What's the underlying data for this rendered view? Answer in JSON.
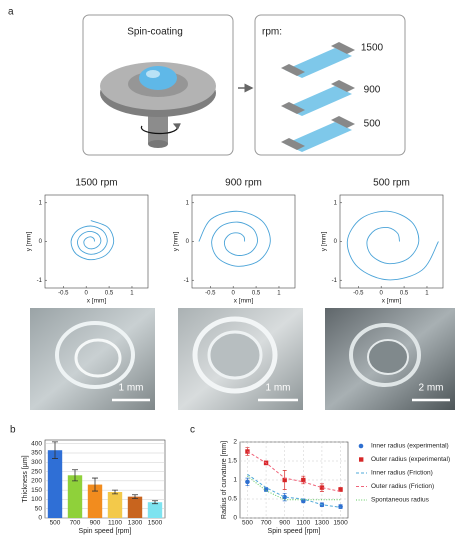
{
  "panel_labels": [
    "a",
    "b",
    "c"
  ],
  "schematic": {
    "spin_title": "Spin-coating",
    "rpm_title": "rpm:",
    "rpm_labels": [
      "1500",
      "900",
      "500"
    ]
  },
  "photos": {
    "scale_bars": [
      "1 mm",
      "1 mm",
      "2 mm"
    ]
  },
  "chart_data": [
    {
      "type": "line",
      "title": "1500 rpm",
      "xlabel": "x [mm]",
      "ylabel": "y [mm]",
      "smooth": true,
      "xlim": [
        -0.9,
        1.35
      ],
      "ylim": [
        -1.2,
        1.2
      ],
      "xticks": [
        -0.5,
        0,
        0.5,
        1
      ],
      "yticks": [
        -1,
        0,
        1
      ],
      "x": [
        0.18,
        0.17,
        0.1,
        0.01,
        -0.05,
        -0.02,
        0.1,
        0.24,
        0.32,
        0.27,
        0.1,
        -0.09,
        -0.19,
        -0.12,
        0.1,
        0.34,
        0.46,
        0.37,
        0.1,
        -0.19,
        -0.33,
        -0.22,
        0.1,
        0.44,
        0.6,
        0.47,
        0.1
      ],
      "series": [
        {
          "color": "#4aa3d8",
          "line": "solid",
          "values": [
            0,
            0.07,
            0.12,
            0.09,
            0,
            -0.12,
            -0.19,
            -0.14,
            0,
            0.17,
            0.26,
            0.19,
            0,
            -0.22,
            -0.33,
            -0.24,
            0,
            0.27,
            0.4,
            0.29,
            0,
            -0.32,
            -0.47,
            -0.34,
            0,
            0.37,
            0.54
          ]
        }
      ]
    },
    {
      "type": "line",
      "title": "900 rpm",
      "xlabel": "x [mm]",
      "ylabel": "y [mm]",
      "smooth": true,
      "xlim": [
        -0.9,
        1.35
      ],
      "ylim": [
        -1.2,
        1.2
      ],
      "xticks": [
        -0.5,
        0,
        0.5,
        1
      ],
      "yticks": [
        -1,
        0,
        1
      ],
      "x": [
        0.25,
        0.23,
        0.1,
        -0.08,
        -0.19,
        -0.13,
        0.1,
        0.38,
        0.53,
        0.43,
        0.1,
        -0.28,
        -0.47,
        -0.33,
        0.1,
        0.58,
        0.81,
        0.63,
        0.1,
        -0.48,
        -0.75
      ],
      "series": [
        {
          "color": "#4aa3d8",
          "line": "solid",
          "values": [
            0,
            0.13,
            0.22,
            0.18,
            0,
            -0.23,
            -0.36,
            -0.28,
            0,
            0.33,
            0.5,
            0.38,
            0,
            -0.43,
            -0.64,
            -0.48,
            0,
            0.53,
            0.78,
            0.58,
            0
          ]
        }
      ]
    },
    {
      "type": "line",
      "title": "500 rpm",
      "xlabel": "x [mm]",
      "ylabel": "y [mm]",
      "smooth": true,
      "xlim": [
        -0.9,
        1.35
      ],
      "ylim": [
        -1.2,
        1.2
      ],
      "xticks": [
        -0.5,
        0,
        0.5,
        1
      ],
      "yticks": [
        -1,
        0,
        1
      ],
      "x": [
        0.4,
        0.36,
        0.15,
        -0.14,
        -0.31,
        -0.21,
        0.15,
        0.59,
        0.82,
        0.66,
        0.15,
        -0.44,
        -0.74,
        -0.51,
        0.15,
        0.89,
        1.25
      ],
      "series": [
        {
          "color": "#4aa3d8",
          "line": "solid",
          "values": [
            0,
            0.21,
            0.36,
            0.29,
            0,
            -0.36,
            -0.57,
            -0.44,
            0,
            0.51,
            0.78,
            0.59,
            0,
            -0.66,
            -0.99,
            -0.74,
            0
          ]
        }
      ]
    },
    {
      "type": "bar",
      "xlabel": "Spin speed [rpm]",
      "ylabel": "Thickness [µm]",
      "grid": true,
      "categories": [
        "500",
        "700",
        "900",
        "1100",
        "1300",
        "1500"
      ],
      "values": [
        365,
        230,
        180,
        140,
        115,
        85
      ],
      "errors": [
        45,
        30,
        35,
        10,
        10,
        8
      ],
      "colors": [
        "#2f6fd6",
        "#8fd13a",
        "#f28c1e",
        "#f3c94a",
        "#c8641e",
        "#7de3f0"
      ],
      "ylim": [
        0,
        420
      ],
      "yticks": [
        0,
        50,
        100,
        150,
        200,
        250,
        300,
        350,
        400
      ]
    },
    {
      "type": "line",
      "xlabel": "Spin speed [rpm]",
      "ylabel": "Radius of curvature [mm]",
      "grid": true,
      "legend": "right",
      "x": [
        500,
        700,
        900,
        1100,
        1300,
        1500
      ],
      "xlim": [
        420,
        1580
      ],
      "ylim": [
        0,
        2
      ],
      "xticks": [
        500,
        700,
        900,
        1100,
        1300,
        1500
      ],
      "yticks": [
        0,
        0.5,
        1,
        1.5,
        2
      ],
      "series": [
        {
          "name": "Inner radius (experimental)",
          "color": "#2e6fd0",
          "marker": "circle",
          "values": [
            0.95,
            0.75,
            0.55,
            0.45,
            0.35,
            0.3
          ],
          "errors": [
            0.1,
            0.05,
            0.1,
            0.05,
            0.05,
            0.05
          ]
        },
        {
          "name": "Outer radius (experimental)",
          "color": "#d62728",
          "marker": "square",
          "values": [
            1.75,
            1.45,
            1.0,
            1.0,
            0.8,
            0.75
          ],
          "errors": [
            0.1,
            0.05,
            0.25,
            0.1,
            0.1,
            0.05
          ]
        },
        {
          "name": "Inner radius (Friction)",
          "color": "#4ea8d8",
          "line": "dashed",
          "values": [
            1.15,
            0.8,
            0.55,
            0.5,
            0.35,
            0.28
          ]
        },
        {
          "name": "Outer radius (Friction)",
          "color": "#f0647a",
          "line": "dashed",
          "values": [
            1.75,
            1.45,
            1.05,
            0.95,
            0.8,
            0.7
          ]
        },
        {
          "name": "Spontaneous radius",
          "color": "#5cc85c",
          "line": "dotted",
          "values": [
            1.1,
            0.72,
            0.48,
            0.48,
            0.48,
            0.48
          ]
        }
      ]
    }
  ]
}
